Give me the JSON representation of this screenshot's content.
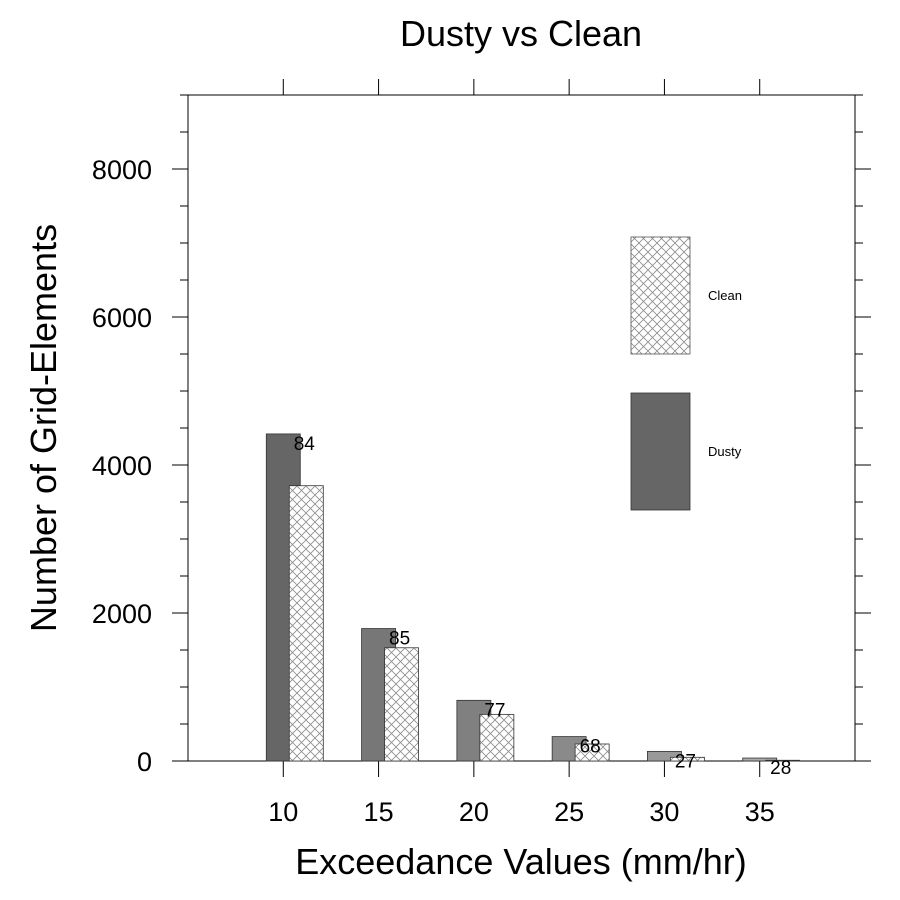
{
  "chart_data": {
    "type": "bar",
    "title": "Dusty vs Clean",
    "xlabel": "Exceedance Values (mm/hr)",
    "ylabel": "Number of Grid-Elements",
    "x_ticks": [
      "10",
      "15",
      "20",
      "25",
      "30",
      "35"
    ],
    "y_ticks": [
      "0",
      "2000",
      "4000",
      "6000",
      "8000"
    ],
    "categories": [
      10,
      15,
      20,
      25,
      30,
      35
    ],
    "xlim": [
      5,
      40
    ],
    "ylim": [
      0,
      9000
    ],
    "series": [
      {
        "name": "Dusty",
        "values": [
          4420,
          1790,
          820,
          330,
          130,
          40
        ],
        "colors": [
          "#666666",
          "#777777",
          "#808080",
          "#8a8a8a",
          "#999999",
          "#aaaaaa"
        ]
      },
      {
        "name": "Clean",
        "values": [
          3720,
          1530,
          630,
          230,
          50,
          10
        ],
        "pattern": "crosshatch"
      }
    ],
    "annotations": [
      "84",
      "85",
      "77",
      "68",
      "27",
      "28"
    ],
    "legend": {
      "placement": "top-right",
      "items": [
        {
          "label": "Clean",
          "pattern": "crosshatch"
        },
        {
          "label": "Dusty",
          "color": "#666666"
        }
      ]
    },
    "grid": false
  }
}
